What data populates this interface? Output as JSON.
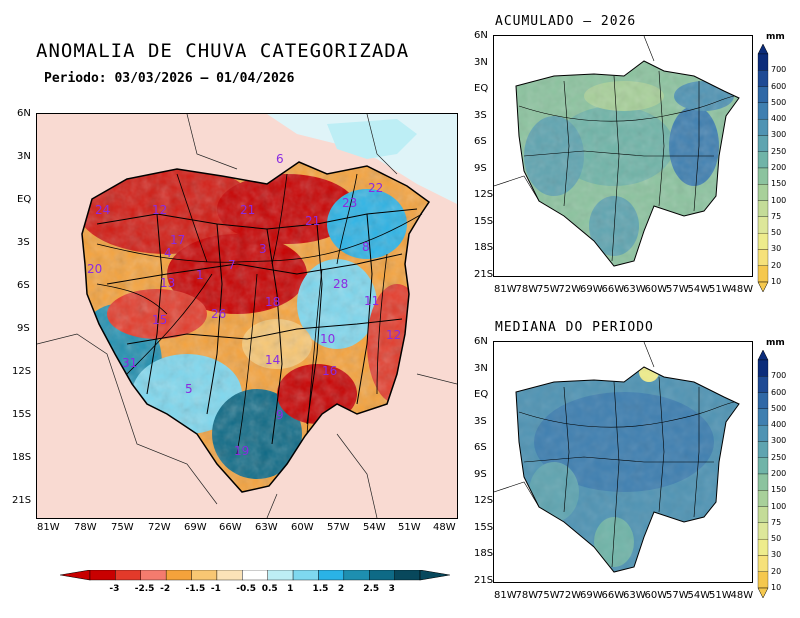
{
  "main_title": "ANOMALIA DE CHUVA CATEGORIZADA",
  "period": "Periodo: 03/03/2026 – 01/04/2026",
  "right_top_title": "ACUMULADO – 2026",
  "right_bottom_title": "MEDIANA DO PERIODO",
  "left_map": {
    "lat_labels": [
      "6N",
      "3N",
      "EQ",
      "3S",
      "6S",
      "9S",
      "12S",
      "15S",
      "18S",
      "21S"
    ],
    "lon_labels": [
      "81W",
      "78W",
      "75W",
      "72W",
      "69W",
      "66W",
      "63W",
      "60W",
      "57W",
      "54W",
      "51W",
      "48W"
    ],
    "basin_labels": [
      "6",
      "22",
      "23",
      "24",
      "12",
      "21",
      "21",
      "3",
      "8",
      "20",
      "28",
      "15",
      "26",
      "11",
      "18",
      "13",
      "31",
      "14",
      "16",
      "12",
      "5",
      "9",
      "19",
      "4",
      "1",
      "7",
      "10",
      "17"
    ]
  },
  "right_maps": {
    "lat_labels": [
      "6N",
      "3N",
      "EQ",
      "3S",
      "6S",
      "9S",
      "12S",
      "15S",
      "18S",
      "21S"
    ],
    "lon_labels": [
      "81W",
      "78W",
      "75W",
      "72W",
      "69W",
      "66W",
      "63W",
      "60W",
      "57W",
      "54W",
      "51W",
      "48W"
    ],
    "units": "mm",
    "scale_labels": [
      "700",
      "600",
      "500",
      "400",
      "300",
      "250",
      "200",
      "150",
      "100",
      "75",
      "50",
      "30",
      "20",
      "10"
    ],
    "scale_colors": [
      "#0b2c7a",
      "#1e4a94",
      "#2f68a6",
      "#3f7fb0",
      "#4f93b3",
      "#5fa4b0",
      "#70b4a8",
      "#8cc39f",
      "#a8d09a",
      "#c4dc98",
      "#dde79a",
      "#eeec8c",
      "#f6e17a",
      "#f5c84e"
    ]
  },
  "anomaly_scale": {
    "labels": [
      "-3",
      "-2.5",
      "-2",
      "-1.5",
      "-1",
      "-0.5",
      "0.5",
      "1",
      "1.5",
      "2",
      "2.5",
      "3"
    ],
    "colors": [
      "#c80000",
      "#e33a2a",
      "#f47b6e",
      "#f5a23b",
      "#f8c773",
      "#fbe3b8",
      "#ffffff",
      "#bdeef5",
      "#7ed8ef",
      "#2ab3e6",
      "#1e8fb0",
      "#0e6a86",
      "#08485c"
    ]
  }
}
